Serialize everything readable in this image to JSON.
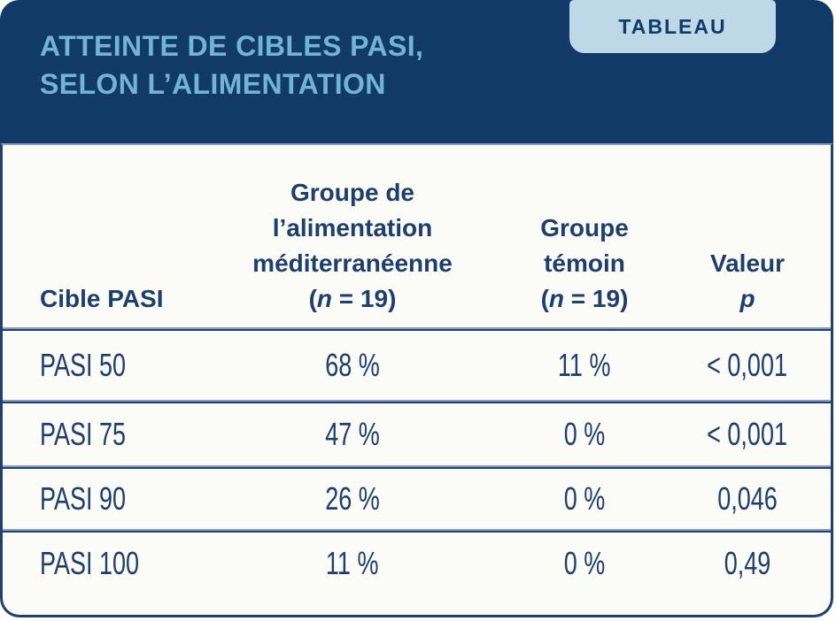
{
  "page": {
    "badge": "TABLEAU",
    "title_line1": "ATTEINTE DE CIBLES PASI,",
    "title_line2": "SELON L’ALIMENTATION"
  },
  "colors": {
    "navy_band": "#123a68",
    "border_navy": "#22406f",
    "text_navy": "#1e3e6e",
    "title_blue": "#74b3d8",
    "badge_bg": "#bed8e8",
    "separator_blue": "#8a9cc1",
    "body_bg": "#fbfbf8"
  },
  "table_header": {
    "c1": "Cible PASI",
    "c2_line1": "Groupe de",
    "c2_line2": "l’alimentation",
    "c2_line3": "méditerranéenne",
    "c3_line1": "Groupe",
    "c3_line2": "témoin",
    "n_open": "(",
    "n_italic": "n",
    "n_close": " = 19)",
    "c4_line1": "Valeur",
    "c4_italic": "p"
  },
  "chart_data": {
    "type": "table",
    "title": "ATTEINTE DE CIBLES PASI, SELON L’ALIMENTATION",
    "columns": [
      "Cible PASI",
      "Groupe de l’alimentation méditerranéenne (n = 19)",
      "Groupe témoin (n = 19)",
      "Valeur p"
    ],
    "rows": [
      [
        "PASI 50",
        "68 %",
        "11 %",
        "< 0,001"
      ],
      [
        "PASI 75",
        "47 %",
        "0 %",
        "< 0,001"
      ],
      [
        "PASI 90",
        "26 %",
        "0 %",
        "0,046"
      ],
      [
        "PASI 100",
        "11 %",
        "0 %",
        "0,49"
      ]
    ]
  }
}
